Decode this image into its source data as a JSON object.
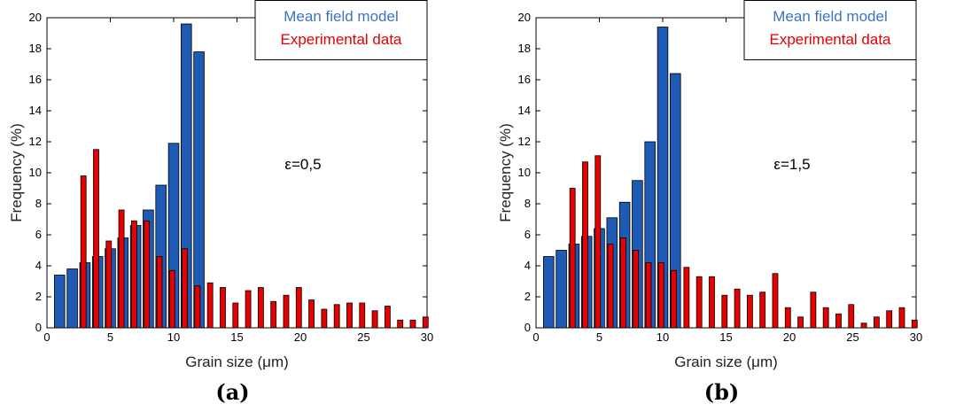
{
  "chart_data": [
    {
      "type": "bar",
      "caption": "(a)",
      "annotation": "ε=0,5",
      "xlabel": "Grain size (μm)",
      "ylabel": "Frequency (%)",
      "xlim": [
        0,
        30
      ],
      "ylim": [
        0,
        20
      ],
      "xticks": [
        0,
        5,
        10,
        15,
        20,
        25,
        30
      ],
      "yticks": [
        0,
        2,
        4,
        6,
        8,
        10,
        12,
        14,
        16,
        18,
        20
      ],
      "legend_position": "top-right",
      "grid": false,
      "series": [
        {
          "name": "Mean field model",
          "color": "#1f5bb5",
          "x": [
            1,
            2,
            3,
            4,
            5,
            6,
            7,
            8,
            9,
            10,
            11,
            12
          ],
          "values": [
            3.4,
            3.8,
            4.2,
            4.6,
            5.1,
            5.8,
            6.6,
            7.6,
            9.2,
            11.9,
            19.6,
            17.8
          ]
        },
        {
          "name": "Experimental data",
          "color": "#e60000",
          "x": [
            3,
            4,
            5,
            6,
            7,
            8,
            9,
            10,
            11,
            12,
            13,
            14,
            15,
            16,
            17,
            18,
            19,
            20,
            21,
            22,
            23,
            24,
            25,
            26,
            27,
            28,
            29,
            30
          ],
          "values": [
            9.8,
            11.5,
            5.6,
            7.6,
            6.9,
            6.9,
            4.6,
            3.7,
            5.1,
            2.7,
            2.9,
            2.6,
            1.6,
            2.4,
            2.6,
            1.7,
            2.1,
            2.6,
            1.8,
            1.2,
            1.5,
            1.6,
            1.6,
            1.1,
            1.4,
            0.5,
            0.5,
            0.7
          ]
        }
      ]
    },
    {
      "type": "bar",
      "caption": "(b)",
      "annotation": "ε=1,5",
      "xlabel": "Grain size (μm)",
      "ylabel": "Frequency (%)",
      "xlim": [
        0,
        30
      ],
      "ylim": [
        0,
        20
      ],
      "xticks": [
        0,
        5,
        10,
        15,
        20,
        25,
        30
      ],
      "yticks": [
        0,
        2,
        4,
        6,
        8,
        10,
        12,
        14,
        16,
        18,
        20
      ],
      "legend_position": "top-right",
      "grid": false,
      "series": [
        {
          "name": "Mean field model",
          "color": "#1f5bb5",
          "x": [
            1,
            2,
            3,
            4,
            5,
            6,
            7,
            8,
            9,
            10,
            11
          ],
          "values": [
            4.6,
            5.0,
            5.4,
            5.9,
            6.4,
            7.1,
            8.1,
            9.5,
            12.0,
            19.4,
            16.4
          ]
        },
        {
          "name": "Experimental data",
          "color": "#e60000",
          "x": [
            3,
            4,
            5,
            6,
            7,
            8,
            9,
            10,
            11,
            12,
            13,
            14,
            15,
            16,
            17,
            18,
            19,
            20,
            21,
            22,
            23,
            24,
            25,
            26,
            27,
            28,
            29,
            30
          ],
          "values": [
            9.0,
            10.7,
            11.1,
            5.4,
            5.8,
            5.0,
            4.2,
            4.2,
            3.7,
            3.9,
            3.3,
            3.3,
            2.1,
            2.5,
            2.1,
            2.3,
            3.5,
            1.3,
            0.7,
            2.3,
            1.3,
            0.9,
            1.5,
            0.3,
            0.7,
            1.1,
            1.3,
            0.5
          ]
        }
      ]
    }
  ]
}
